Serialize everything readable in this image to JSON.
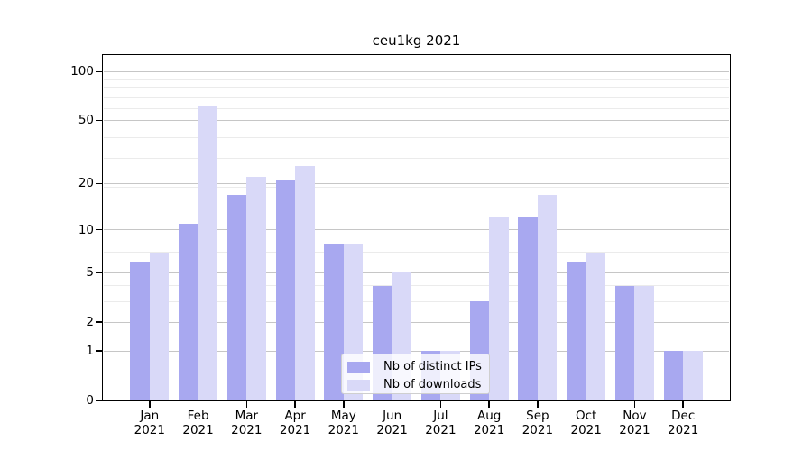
{
  "chart_data": {
    "type": "bar",
    "title": "ceu1kg 2021",
    "categories": [
      "Jan",
      "Feb",
      "Mar",
      "Apr",
      "May",
      "Jun",
      "Jul",
      "Aug",
      "Sep",
      "Oct",
      "Nov",
      "Dec"
    ],
    "category_year": "2021",
    "series": [
      {
        "name": "Nb of distinct IPs",
        "color": "#a8a8f0",
        "values": [
          6,
          11,
          17,
          21,
          8,
          4,
          1,
          3,
          12,
          6,
          4,
          1
        ]
      },
      {
        "name": "Nb of downloads",
        "color": "#d9d9f8",
        "values": [
          7,
          62,
          22,
          26,
          8,
          5,
          1,
          12,
          17,
          7,
          4,
          1
        ]
      }
    ],
    "y_axis": {
      "scale": "log1p",
      "ticks": [
        0,
        1,
        2,
        5,
        10,
        20,
        50,
        100
      ],
      "max": 128,
      "minor_gridline_values": [
        3,
        4,
        6,
        7,
        8,
        19,
        29,
        39,
        59,
        69,
        79,
        89
      ]
    },
    "grid": {
      "major_color": "#c6c6c6",
      "minor_color": "#ebebeb"
    },
    "legend": {
      "position": "lower-center"
    },
    "xlabel": "",
    "ylabel": ""
  }
}
